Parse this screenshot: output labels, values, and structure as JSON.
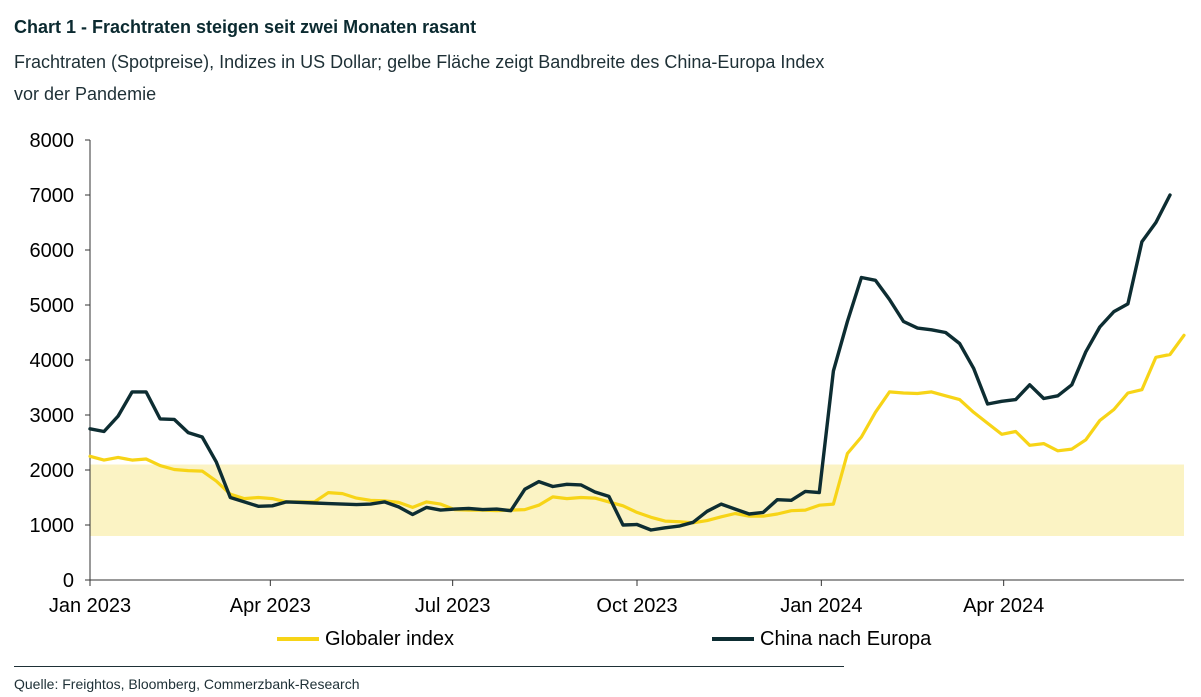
{
  "header": {
    "title": "Chart 1 - Frachtraten steigen seit zwei Monaten rasant",
    "subtitle": "Frachtraten (Spotpreise), Indizes in US Dollar; gelbe Fläche zeigt Bandbreite des China-Europa Index vor der Pandemie"
  },
  "footer": {
    "source": "Quelle: Freightos, Bloomberg, Commerzbank-Research"
  },
  "colors": {
    "global": "#f7d417",
    "china": "#0d2d32",
    "band": "#fbf3c4",
    "axis": "#333333"
  },
  "chart_data": {
    "type": "line",
    "x_unit": "week",
    "x_start": "2023-01-01",
    "x_end": "2024-06-30",
    "xticks": [
      {
        "date": "2023-01-01",
        "label": "Jan 2023"
      },
      {
        "date": "2023-04-01",
        "label": "Apr 2023"
      },
      {
        "date": "2023-07-01",
        "label": "Jul 2023"
      },
      {
        "date": "2023-10-01",
        "label": "Oct 2023"
      },
      {
        "date": "2024-01-01",
        "label": "Jan 2024"
      },
      {
        "date": "2024-04-01",
        "label": "Apr 2024"
      }
    ],
    "ylim": [
      0,
      8000
    ],
    "yticks": [
      0,
      1000,
      2000,
      3000,
      4000,
      5000,
      6000,
      7000,
      8000
    ],
    "band": {
      "from": 800,
      "to": 2100,
      "label": "Bandbreite des China-Europa Index vor der Pandemie"
    },
    "legend_position": "bottom",
    "series": [
      {
        "name": "Globaler index",
        "color": "#f7d417",
        "points": [
          [
            "2023-01-01",
            2250
          ],
          [
            "2023-01-08",
            2180
          ],
          [
            "2023-01-15",
            2230
          ],
          [
            "2023-01-22",
            2180
          ],
          [
            "2023-01-29",
            2200
          ],
          [
            "2023-02-05",
            2080
          ],
          [
            "2023-02-12",
            2010
          ],
          [
            "2023-02-19",
            1990
          ],
          [
            "2023-02-26",
            1980
          ],
          [
            "2023-03-05",
            1800
          ],
          [
            "2023-03-12",
            1560
          ],
          [
            "2023-03-19",
            1480
          ],
          [
            "2023-03-26",
            1500
          ],
          [
            "2023-04-02",
            1480
          ],
          [
            "2023-04-09",
            1420
          ],
          [
            "2023-04-16",
            1420
          ],
          [
            "2023-04-23",
            1420
          ],
          [
            "2023-04-30",
            1590
          ],
          [
            "2023-05-07",
            1570
          ],
          [
            "2023-05-14",
            1490
          ],
          [
            "2023-05-21",
            1450
          ],
          [
            "2023-05-28",
            1440
          ],
          [
            "2023-06-04",
            1410
          ],
          [
            "2023-06-11",
            1320
          ],
          [
            "2023-06-18",
            1420
          ],
          [
            "2023-06-25",
            1380
          ],
          [
            "2023-07-02",
            1280
          ],
          [
            "2023-07-09",
            1270
          ],
          [
            "2023-07-16",
            1270
          ],
          [
            "2023-07-23",
            1260
          ],
          [
            "2023-07-30",
            1270
          ],
          [
            "2023-08-06",
            1280
          ],
          [
            "2023-08-13",
            1360
          ],
          [
            "2023-08-20",
            1510
          ],
          [
            "2023-08-27",
            1480
          ],
          [
            "2023-09-03",
            1500
          ],
          [
            "2023-09-10",
            1490
          ],
          [
            "2023-09-17",
            1420
          ],
          [
            "2023-09-24",
            1350
          ],
          [
            "2023-10-01",
            1230
          ],
          [
            "2023-10-08",
            1140
          ],
          [
            "2023-10-15",
            1070
          ],
          [
            "2023-10-22",
            1060
          ],
          [
            "2023-10-29",
            1040
          ],
          [
            "2023-11-05",
            1080
          ],
          [
            "2023-11-12",
            1150
          ],
          [
            "2023-11-19",
            1210
          ],
          [
            "2023-11-26",
            1160
          ],
          [
            "2023-12-03",
            1160
          ],
          [
            "2023-12-10",
            1200
          ],
          [
            "2023-12-17",
            1260
          ],
          [
            "2023-12-24",
            1270
          ],
          [
            "2023-12-31",
            1360
          ],
          [
            "2024-01-07",
            1380
          ],
          [
            "2024-01-14",
            2300
          ],
          [
            "2024-01-21",
            2600
          ],
          [
            "2024-01-28",
            3050
          ],
          [
            "2024-02-04",
            3420
          ],
          [
            "2024-02-11",
            3400
          ],
          [
            "2024-02-18",
            3390
          ],
          [
            "2024-02-25",
            3420
          ],
          [
            "2024-03-03",
            3350
          ],
          [
            "2024-03-10",
            3280
          ],
          [
            "2024-03-17",
            3050
          ],
          [
            "2024-03-24",
            2850
          ],
          [
            "2024-03-31",
            2650
          ],
          [
            "2024-04-07",
            2700
          ],
          [
            "2024-04-14",
            2450
          ],
          [
            "2024-04-21",
            2480
          ],
          [
            "2024-04-28",
            2350
          ],
          [
            "2024-05-05",
            2380
          ],
          [
            "2024-05-12",
            2550
          ],
          [
            "2024-05-19",
            2900
          ],
          [
            "2024-05-26",
            3100
          ],
          [
            "2024-06-02",
            3400
          ],
          [
            "2024-06-09",
            3460
          ],
          [
            "2024-06-16",
            4050
          ],
          [
            "2024-06-23",
            4100
          ],
          [
            "2024-06-30",
            4450
          ]
        ]
      },
      {
        "name": "China nach Europa",
        "color": "#0d2d32",
        "points": [
          [
            "2023-01-01",
            2750
          ],
          [
            "2023-01-08",
            2700
          ],
          [
            "2023-01-15",
            2980
          ],
          [
            "2023-01-22",
            3420
          ],
          [
            "2023-01-29",
            3420
          ],
          [
            "2023-02-05",
            2930
          ],
          [
            "2023-02-12",
            2920
          ],
          [
            "2023-02-19",
            2680
          ],
          [
            "2023-02-26",
            2600
          ],
          [
            "2023-03-05",
            2150
          ],
          [
            "2023-03-12",
            1500
          ],
          [
            "2023-03-19",
            1420
          ],
          [
            "2023-03-26",
            1340
          ],
          [
            "2023-04-02",
            1350
          ],
          [
            "2023-04-09",
            1420
          ],
          [
            "2023-04-16",
            1410
          ],
          [
            "2023-04-23",
            1400
          ],
          [
            "2023-04-30",
            1390
          ],
          [
            "2023-05-07",
            1380
          ],
          [
            "2023-05-14",
            1370
          ],
          [
            "2023-05-21",
            1380
          ],
          [
            "2023-05-28",
            1420
          ],
          [
            "2023-06-04",
            1330
          ],
          [
            "2023-06-11",
            1190
          ],
          [
            "2023-06-18",
            1320
          ],
          [
            "2023-06-25",
            1270
          ],
          [
            "2023-07-02",
            1290
          ],
          [
            "2023-07-09",
            1300
          ],
          [
            "2023-07-16",
            1280
          ],
          [
            "2023-07-23",
            1290
          ],
          [
            "2023-07-30",
            1260
          ],
          [
            "2023-08-06",
            1650
          ],
          [
            "2023-08-13",
            1790
          ],
          [
            "2023-08-20",
            1700
          ],
          [
            "2023-08-27",
            1740
          ],
          [
            "2023-09-03",
            1730
          ],
          [
            "2023-09-10",
            1600
          ],
          [
            "2023-09-17",
            1520
          ],
          [
            "2023-09-24",
            1000
          ],
          [
            "2023-10-01",
            1010
          ],
          [
            "2023-10-08",
            910
          ],
          [
            "2023-10-15",
            950
          ],
          [
            "2023-10-22",
            980
          ],
          [
            "2023-10-29",
            1050
          ],
          [
            "2023-11-05",
            1250
          ],
          [
            "2023-11-12",
            1380
          ],
          [
            "2023-11-19",
            1290
          ],
          [
            "2023-11-26",
            1200
          ],
          [
            "2023-12-03",
            1230
          ],
          [
            "2023-12-10",
            1460
          ],
          [
            "2023-12-17",
            1450
          ],
          [
            "2023-12-24",
            1610
          ],
          [
            "2023-12-31",
            1590
          ],
          [
            "2024-01-07",
            3800
          ],
          [
            "2024-01-14",
            4700
          ],
          [
            "2024-01-21",
            5500
          ],
          [
            "2024-01-28",
            5450
          ],
          [
            "2024-02-04",
            5100
          ],
          [
            "2024-02-11",
            4700
          ],
          [
            "2024-02-18",
            4580
          ],
          [
            "2024-02-25",
            4550
          ],
          [
            "2024-03-03",
            4500
          ],
          [
            "2024-03-10",
            4300
          ],
          [
            "2024-03-17",
            3850
          ],
          [
            "2024-03-24",
            3200
          ],
          [
            "2024-03-31",
            3250
          ],
          [
            "2024-04-07",
            3280
          ],
          [
            "2024-04-14",
            3550
          ],
          [
            "2024-04-21",
            3300
          ],
          [
            "2024-04-28",
            3350
          ],
          [
            "2024-05-05",
            3550
          ],
          [
            "2024-05-12",
            4150
          ],
          [
            "2024-05-19",
            4600
          ],
          [
            "2024-05-26",
            4880
          ],
          [
            "2024-06-02",
            5020
          ],
          [
            "2024-06-09",
            6150
          ],
          [
            "2024-06-16",
            6500
          ],
          [
            "2024-06-23",
            7000
          ]
        ]
      }
    ]
  }
}
